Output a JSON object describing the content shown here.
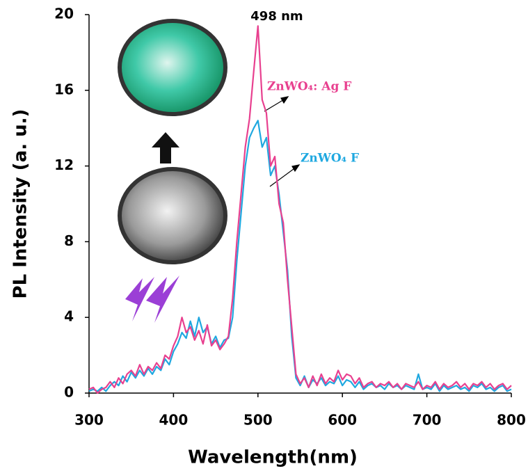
{
  "chart_data": {
    "type": "line",
    "x_label": "Wavelength(nm)",
    "y_label": "PL Intensity (a. u.)",
    "annotations": [
      "498 nm",
      "ZnWO₄: Ag F",
      "ZnWO₄ F"
    ],
    "xlim": [
      300,
      800
    ],
    "xticks": [
      300,
      400,
      500,
      600,
      700,
      800
    ],
    "ylim": [
      0,
      20
    ],
    "yticks": [
      0,
      4,
      8,
      12,
      16,
      20
    ],
    "x": [
      300,
      305,
      310,
      315,
      320,
      325,
      330,
      335,
      340,
      345,
      350,
      355,
      360,
      365,
      370,
      375,
      380,
      385,
      390,
      395,
      400,
      405,
      410,
      415,
      420,
      425,
      430,
      435,
      440,
      445,
      450,
      455,
      460,
      465,
      470,
      475,
      480,
      485,
      490,
      495,
      500,
      505,
      510,
      515,
      520,
      525,
      530,
      535,
      540,
      545,
      550,
      555,
      560,
      565,
      570,
      575,
      580,
      585,
      590,
      595,
      600,
      605,
      610,
      615,
      620,
      625,
      630,
      635,
      640,
      645,
      650,
      655,
      660,
      665,
      670,
      675,
      680,
      685,
      690,
      695,
      700,
      705,
      710,
      715,
      720,
      725,
      730,
      735,
      740,
      745,
      750,
      755,
      760,
      765,
      770,
      775,
      780,
      785,
      790,
      795,
      800
    ],
    "series": [
      {
        "color": "#1fa8e0",
        "values": [
          0.1,
          0.2,
          0.1,
          0.3,
          0.1,
          0.4,
          0.6,
          0.4,
          0.9,
          0.6,
          1.1,
          0.8,
          1.2,
          0.9,
          1.3,
          1.0,
          1.4,
          1.2,
          1.8,
          1.5,
          2.2,
          2.6,
          3.2,
          2.9,
          3.8,
          3.0,
          4.0,
          3.2,
          3.5,
          2.6,
          3.0,
          2.4,
          2.8,
          2.9,
          4.0,
          7.0,
          9.5,
          12.0,
          13.5,
          14.0,
          14.4,
          13.0,
          13.5,
          11.5,
          12.0,
          10.5,
          8.5,
          6.5,
          3.0,
          0.8,
          0.4,
          0.9,
          0.3,
          0.7,
          0.5,
          0.8,
          0.4,
          0.6,
          0.5,
          0.9,
          0.4,
          0.7,
          0.6,
          0.3,
          0.6,
          0.2,
          0.4,
          0.5,
          0.3,
          0.4,
          0.2,
          0.5,
          0.3,
          0.4,
          0.2,
          0.4,
          0.3,
          0.2,
          1.0,
          0.2,
          0.3,
          0.2,
          0.5,
          0.1,
          0.4,
          0.2,
          0.3,
          0.4,
          0.2,
          0.3,
          0.1,
          0.4,
          0.3,
          0.5,
          0.2,
          0.3,
          0.1,
          0.3,
          0.4,
          0.1,
          0.2
        ]
      },
      {
        "color": "#e8408f",
        "values": [
          0.2,
          0.3,
          0,
          0.2,
          0.3,
          0.6,
          0.3,
          0.8,
          0.5,
          1.0,
          1.2,
          0.9,
          1.5,
          1.0,
          1.4,
          1.2,
          1.6,
          1.3,
          2.0,
          1.8,
          2.5,
          3.0,
          4.0,
          3.2,
          3.5,
          2.8,
          3.3,
          2.6,
          3.6,
          2.5,
          2.8,
          2.3,
          2.6,
          3.0,
          5.0,
          8.0,
          10.5,
          13.0,
          14.5,
          17.0,
          19.4,
          15.5,
          14.8,
          12.0,
          12.5,
          10.0,
          9.0,
          6.0,
          3.5,
          1.0,
          0.5,
          0.8,
          0.3,
          0.9,
          0.4,
          1.0,
          0.5,
          0.8,
          0.6,
          1.2,
          0.7,
          1.0,
          0.9,
          0.5,
          0.8,
          0.3,
          0.5,
          0.6,
          0.3,
          0.5,
          0.4,
          0.6,
          0.3,
          0.5,
          0.2,
          0.5,
          0.4,
          0.3,
          0.6,
          0.2,
          0.4,
          0.3,
          0.6,
          0.2,
          0.5,
          0.3,
          0.4,
          0.6,
          0.3,
          0.5,
          0.2,
          0.5,
          0.4,
          0.6,
          0.3,
          0.5,
          0.2,
          0.4,
          0.5,
          0.2,
          0.4
        ]
      }
    ]
  }
}
